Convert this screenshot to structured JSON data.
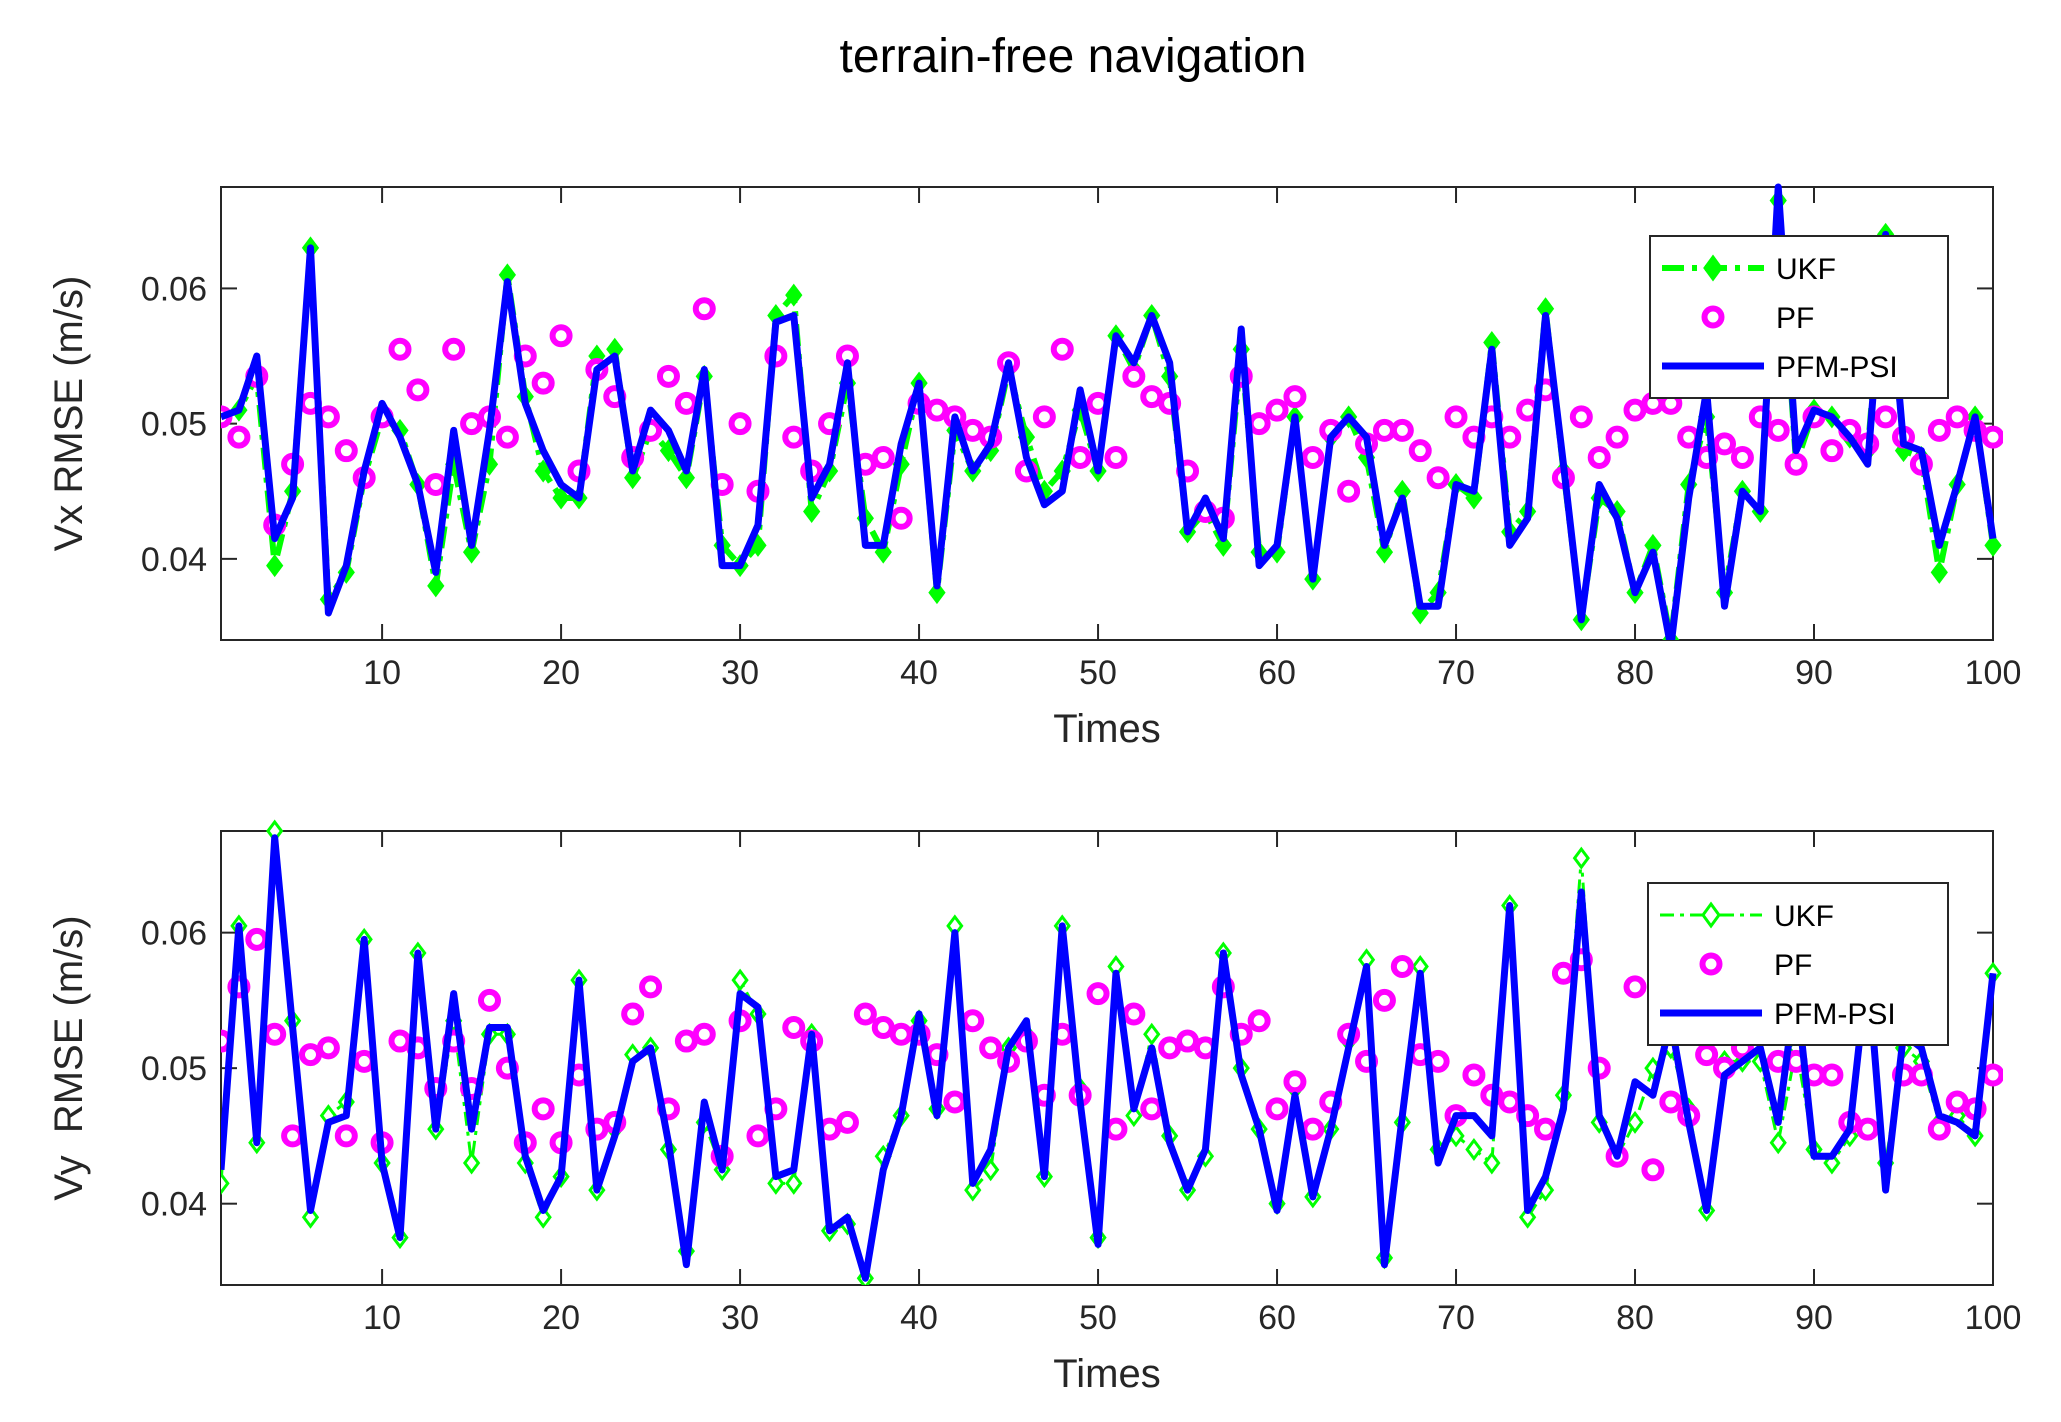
{
  "figure_title": "terrain-free navigation",
  "chart_data": [
    {
      "type": "line",
      "xlabel": "Times",
      "ylabel": "Vx RMSE (m/s)",
      "xlim": [
        1,
        100
      ],
      "ylim": [
        0.034,
        0.0675
      ],
      "xticks": [
        10,
        20,
        30,
        40,
        50,
        60,
        70,
        80,
        90,
        100
      ],
      "yticks": [
        0.04,
        0.05,
        0.06
      ],
      "ytick_labels": [
        "0.04",
        "0.05",
        "0.06"
      ],
      "legend_position": "top-right",
      "legend_labels": {
        "ukf": "UKF",
        "pf": "PF",
        "pfm": "PFM-PSI"
      },
      "colors": {
        "ukf": "#00ff00",
        "pf": "#ff00ff",
        "pfm": "#0000ff"
      },
      "series": [
        {
          "name": "UKF",
          "values": [
            0.0505,
            0.051,
            0.0535,
            0.0395,
            0.045,
            0.063,
            0.037,
            0.039,
            0.046,
            0.0505,
            0.0495,
            0.0455,
            0.038,
            0.047,
            0.0405,
            0.047,
            0.061,
            0.052,
            0.0465,
            0.0445,
            0.0445,
            0.055,
            0.0555,
            0.046,
            0.0495,
            0.048,
            0.046,
            0.0535,
            0.041,
            0.0395,
            0.041,
            0.058,
            0.0595,
            0.0435,
            0.0465,
            0.053,
            0.043,
            0.0405,
            0.047,
            0.053,
            0.0375,
            0.0495,
            0.0465,
            0.048,
            0.054,
            0.049,
            0.045,
            0.0465,
            0.051,
            0.0465,
            0.0565,
            0.054,
            0.058,
            0.0535,
            0.042,
            0.0435,
            0.041,
            0.0555,
            0.0405,
            0.0405,
            0.0505,
            0.0385,
            0.049,
            0.0505,
            0.0475,
            0.0405,
            0.045,
            0.036,
            0.0375,
            0.0455,
            0.0445,
            0.056,
            0.042,
            0.0435,
            0.0585,
            0.0465,
            0.0355,
            0.0445,
            0.0435,
            0.0375,
            0.041,
            0.034,
            0.0455,
            0.0505,
            0.0375,
            0.045,
            0.0435,
            0.0665,
            0.047,
            0.051,
            0.0505,
            0.049,
            0.048,
            0.064,
            0.048,
            0.0475,
            0.039,
            0.0455,
            0.0505,
            0.041
          ]
        },
        {
          "name": "PF",
          "values": [
            0.0505,
            0.049,
            0.0535,
            0.0425,
            0.047,
            0.0515,
            0.0505,
            0.048,
            0.046,
            0.0505,
            0.0555,
            0.0525,
            0.0455,
            0.0555,
            0.05,
            0.0505,
            0.049,
            0.055,
            0.053,
            0.0565,
            0.0465,
            0.054,
            0.052,
            0.0475,
            0.0495,
            0.0535,
            0.0515,
            0.0585,
            0.0455,
            0.05,
            0.045,
            0.055,
            0.049,
            0.0465,
            0.05,
            0.055,
            0.047,
            0.0475,
            0.043,
            0.0515,
            0.051,
            0.0505,
            0.0495,
            0.049,
            0.0545,
            0.0465,
            0.0505,
            0.0555,
            0.0475,
            0.0515,
            0.0475,
            0.0535,
            0.052,
            0.0515,
            0.0465,
            0.0435,
            0.043,
            0.0535,
            0.05,
            0.051,
            0.052,
            0.0475,
            0.0495,
            0.045,
            0.0485,
            0.0495,
            0.0495,
            0.048,
            0.046,
            0.0505,
            0.049,
            0.0505,
            0.049,
            0.051,
            0.0525,
            0.046,
            0.0505,
            0.0475,
            0.049,
            0.051,
            0.0515,
            0.0515,
            0.049,
            0.0475,
            0.0485,
            0.0475,
            0.0505,
            0.0495,
            0.047,
            0.0505,
            0.048,
            0.0495,
            0.0485,
            0.0505,
            0.049,
            0.047,
            0.0495,
            0.0505,
            0.0495,
            0.049
          ]
        },
        {
          "name": "PFM-PSI",
          "values": [
            0.0505,
            0.051,
            0.055,
            0.0415,
            0.0445,
            0.063,
            0.036,
            0.0395,
            0.0465,
            0.0515,
            0.049,
            0.0455,
            0.039,
            0.0495,
            0.041,
            0.0495,
            0.0605,
            0.0515,
            0.048,
            0.0455,
            0.0445,
            0.054,
            0.055,
            0.0465,
            0.051,
            0.0495,
            0.0465,
            0.054,
            0.0395,
            0.0395,
            0.0425,
            0.0575,
            0.058,
            0.0445,
            0.047,
            0.0545,
            0.041,
            0.041,
            0.0485,
            0.053,
            0.038,
            0.0505,
            0.0465,
            0.0485,
            0.0545,
            0.0475,
            0.044,
            0.045,
            0.0525,
            0.0465,
            0.0565,
            0.0545,
            0.058,
            0.0545,
            0.042,
            0.0445,
            0.0415,
            0.057,
            0.0395,
            0.041,
            0.0505,
            0.0385,
            0.049,
            0.0505,
            0.049,
            0.041,
            0.0445,
            0.0365,
            0.0365,
            0.0455,
            0.045,
            0.0555,
            0.041,
            0.043,
            0.058,
            0.047,
            0.0355,
            0.0455,
            0.043,
            0.0375,
            0.0405,
            0.0335,
            0.0445,
            0.0525,
            0.0365,
            0.045,
            0.0435,
            0.0675,
            0.048,
            0.051,
            0.0505,
            0.049,
            0.047,
            0.064,
            0.0485,
            0.048,
            0.041,
            0.0455,
            0.0505,
            0.0415
          ]
        }
      ]
    },
    {
      "type": "line",
      "xlabel": "Times",
      "ylabel": "Vy  RMSE (m/s)",
      "xlim": [
        1,
        100
      ],
      "ylim": [
        0.034,
        0.0675
      ],
      "xticks": [
        10,
        20,
        30,
        40,
        50,
        60,
        70,
        80,
        90,
        100
      ],
      "yticks": [
        0.04,
        0.05,
        0.06
      ],
      "ytick_labels": [
        "0.04",
        "0.05",
        "0.06"
      ],
      "legend_position": "top-right",
      "legend_labels": {
        "ukf": "UKF",
        "pf": "PF",
        "pfm": "PFM-PSI"
      },
      "colors": {
        "ukf": "#00ff00",
        "pf": "#ff00ff",
        "pfm": "#0000ff"
      },
      "series": [
        {
          "name": "UKF",
          "values": [
            0.0415,
            0.0605,
            0.0445,
            0.0675,
            0.0535,
            0.039,
            0.0465,
            0.0475,
            0.0595,
            0.043,
            0.0375,
            0.0585,
            0.0455,
            0.0535,
            0.043,
            0.0525,
            0.0525,
            0.043,
            0.039,
            0.042,
            0.0565,
            0.041,
            0.0455,
            0.051,
            0.0515,
            0.044,
            0.0365,
            0.046,
            0.0425,
            0.0565,
            0.054,
            0.0415,
            0.0415,
            0.0525,
            0.038,
            0.0385,
            0.0345,
            0.0435,
            0.0465,
            0.0535,
            0.047,
            0.0605,
            0.041,
            0.0425,
            0.0515,
            0.0525,
            0.042,
            0.0605,
            0.0485,
            0.0375,
            0.0575,
            0.0465,
            0.0525,
            0.045,
            0.041,
            0.0435,
            0.0585,
            0.05,
            0.0455,
            0.04,
            0.0485,
            0.0405,
            0.0455,
            0.052,
            0.058,
            0.036,
            0.046,
            0.0575,
            0.044,
            0.045,
            0.044,
            0.043,
            0.062,
            0.039,
            0.041,
            0.048,
            0.0655,
            0.046,
            0.0435,
            0.046,
            0.05,
            0.0515,
            0.047,
            0.0395,
            0.0505,
            0.0505,
            0.0505,
            0.0445,
            0.0515,
            0.044,
            0.043,
            0.045,
            0.0565,
            0.043,
            0.0515,
            0.0505,
            0.046,
            0.0465,
            0.045,
            0.057
          ]
        },
        {
          "name": "PF",
          "values": [
            0.052,
            0.056,
            0.0595,
            0.0525,
            0.045,
            0.051,
            0.0515,
            0.045,
            0.0505,
            0.0445,
            0.052,
            0.0515,
            0.0485,
            0.052,
            0.0485,
            0.055,
            0.05,
            0.0445,
            0.047,
            0.0445,
            0.0495,
            0.0455,
            0.046,
            0.054,
            0.056,
            0.047,
            0.052,
            0.0525,
            0.0435,
            0.0535,
            0.045,
            0.047,
            0.053,
            0.052,
            0.0455,
            0.046,
            0.054,
            0.053,
            0.0525,
            0.0525,
            0.051,
            0.0475,
            0.0535,
            0.0515,
            0.0505,
            0.052,
            0.048,
            0.0525,
            0.048,
            0.0555,
            0.0455,
            0.054,
            0.047,
            0.0515,
            0.052,
            0.0515,
            0.056,
            0.0525,
            0.0535,
            0.047,
            0.049,
            0.0455,
            0.0475,
            0.0525,
            0.0505,
            0.055,
            0.0575,
            0.051,
            0.0505,
            0.0465,
            0.0495,
            0.048,
            0.0475,
            0.0465,
            0.0455,
            0.057,
            0.058,
            0.05,
            0.0435,
            0.056,
            0.0425,
            0.0475,
            0.0465,
            0.051,
            0.05,
            0.0515,
            0.0525,
            0.0505,
            0.0505,
            0.0495,
            0.0495,
            0.046,
            0.0455,
            0.0525,
            0.0495,
            0.0495,
            0.0455,
            0.0475,
            0.047,
            0.0495
          ]
        },
        {
          "name": "PFM-PSI",
          "values": [
            0.0425,
            0.0605,
            0.0445,
            0.067,
            0.053,
            0.0395,
            0.046,
            0.0465,
            0.0595,
            0.043,
            0.0375,
            0.0585,
            0.0455,
            0.0555,
            0.0455,
            0.053,
            0.053,
            0.0435,
            0.0395,
            0.042,
            0.0565,
            0.041,
            0.045,
            0.0505,
            0.0515,
            0.0445,
            0.0355,
            0.0475,
            0.0425,
            0.0555,
            0.0545,
            0.042,
            0.0425,
            0.0525,
            0.038,
            0.039,
            0.0345,
            0.0425,
            0.0465,
            0.054,
            0.0465,
            0.06,
            0.0415,
            0.044,
            0.0515,
            0.0535,
            0.042,
            0.0605,
            0.0475,
            0.037,
            0.057,
            0.047,
            0.0515,
            0.0445,
            0.041,
            0.044,
            0.0585,
            0.0495,
            0.0455,
            0.0395,
            0.048,
            0.0405,
            0.0455,
            0.0515,
            0.0575,
            0.0355,
            0.0465,
            0.057,
            0.043,
            0.0465,
            0.0465,
            0.045,
            0.062,
            0.0395,
            0.042,
            0.047,
            0.063,
            0.0465,
            0.0435,
            0.049,
            0.048,
            0.0535,
            0.046,
            0.0395,
            0.0495,
            0.0505,
            0.0515,
            0.046,
            0.056,
            0.0435,
            0.0435,
            0.0455,
            0.0575,
            0.041,
            0.0525,
            0.0515,
            0.0465,
            0.046,
            0.045,
            0.057
          ]
        }
      ]
    }
  ]
}
